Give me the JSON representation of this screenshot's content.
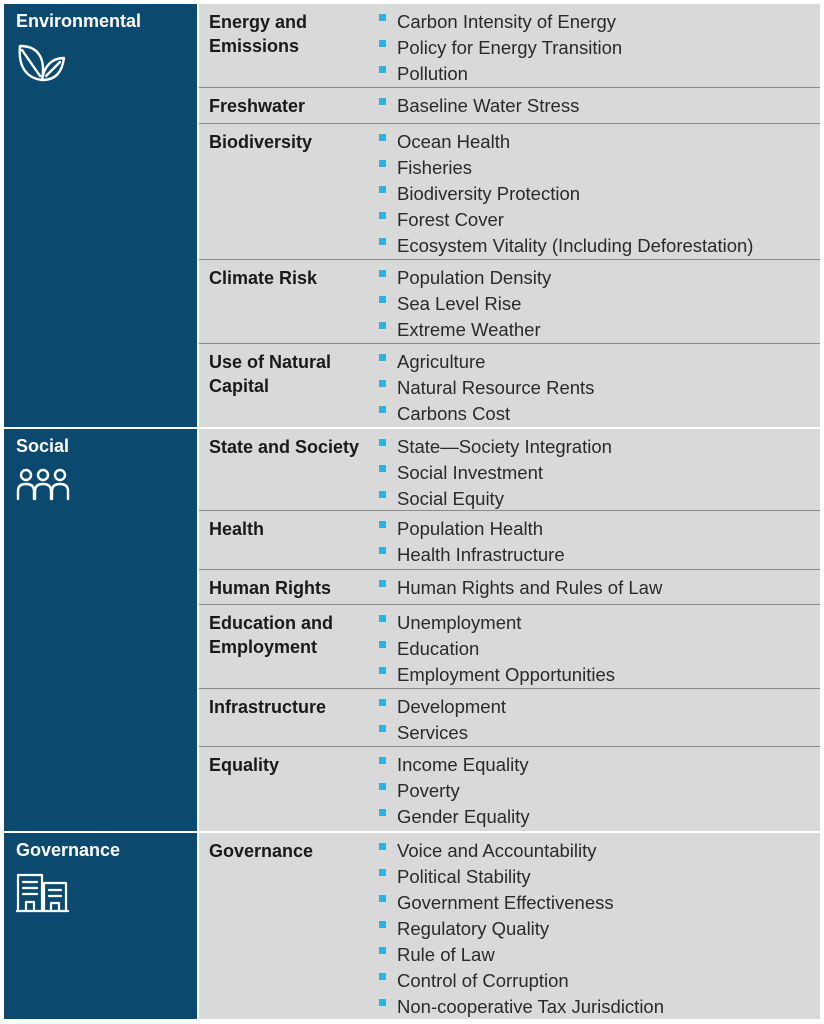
{
  "pillars": [
    {
      "title": "Environmental",
      "icon": "leaf-icon",
      "rows": [
        {
          "label": "Energy and Emissions",
          "items": [
            "Carbon Intensity of Energy",
            "Policy for Energy Transition",
            "Pollution"
          ]
        },
        {
          "label": "Freshwater",
          "items": [
            "Baseline Water Stress"
          ]
        },
        {
          "label": "Biodiversity",
          "items": [
            "Ocean Health",
            "Fisheries",
            "Biodiversity Protection",
            "Forest Cover",
            "Ecosystem Vitality (Including Deforestation)"
          ]
        },
        {
          "label": "Climate Risk",
          "items": [
            "Population Density",
            "Sea Level Rise",
            "Extreme Weather"
          ]
        },
        {
          "label": "Use of Natural Capital",
          "items": [
            "Agriculture",
            "Natural Resource Rents",
            "Carbons Cost"
          ]
        }
      ]
    },
    {
      "title": "Social",
      "icon": "people-icon",
      "rows": [
        {
          "label": "State and Society",
          "items": [
            "State—Society Integration",
            "Social Investment",
            "Social Equity"
          ]
        },
        {
          "label": "Health",
          "items": [
            "Population Health",
            "Health Infrastructure"
          ]
        },
        {
          "label": "Human Rights",
          "items": [
            "Human Rights and Rules of Law"
          ]
        },
        {
          "label": "Education and Employment",
          "items": [
            "Unemployment",
            "Education",
            "Employment Opportunities"
          ]
        },
        {
          "label": "Infrastructure",
          "items": [
            "Development",
            "Services"
          ]
        },
        {
          "label": "Equality",
          "items": [
            "Income Equality",
            "Poverty",
            "Gender Equality"
          ]
        }
      ]
    },
    {
      "title": "Governance",
      "icon": "buildings-icon",
      "rows": [
        {
          "label": "Governance",
          "items": [
            "Voice and Accountability",
            "Political Stability",
            "Government Effectiveness",
            "Regulatory Quality",
            "Rule of Law",
            "Control of Corruption",
            "Non-cooperative Tax Jurisdiction"
          ]
        }
      ]
    }
  ]
}
